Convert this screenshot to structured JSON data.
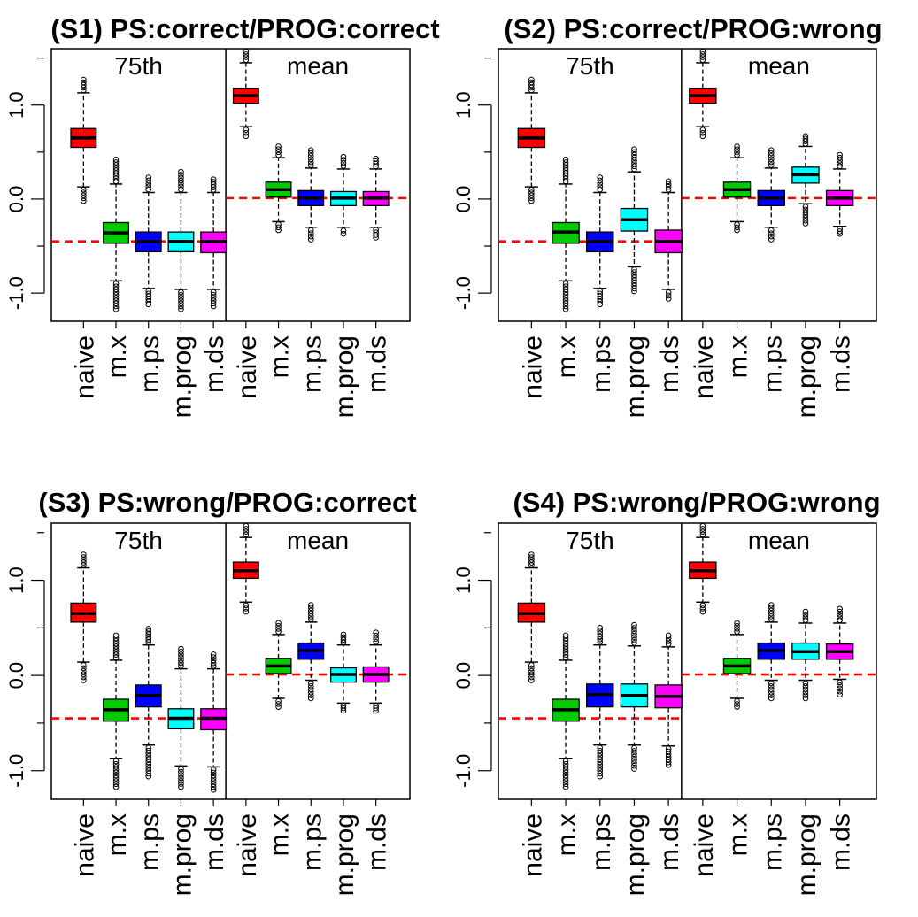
{
  "figure": {
    "colors": {
      "naive": "#ff0000",
      "m.x": "#00cc00",
      "m.ps": "#0000ff",
      "m.prog": "#00ffff",
      "m.ds": "#ff00ff",
      "reference_line": "#ff0000"
    }
  },
  "chart_data": [
    {
      "type": "boxplot",
      "title": "(S1) PS:correct/PROG:correct",
      "panel_labels": [
        "75th",
        "mean"
      ],
      "categories": [
        "naive",
        "m.x",
        "m.ps",
        "m.prog",
        "m.ds"
      ],
      "yticks": [
        "-1.0",
        "0.0",
        "1.0"
      ],
      "ylim": [
        -1.3,
        1.6
      ],
      "reference_lines": [
        -0.45,
        0.01
      ],
      "groups": [
        {
          "label": "75th",
          "boxes": [
            {
              "name": "naive",
              "whislo": 0.13,
              "q1": 0.55,
              "med": 0.65,
              "q3": 0.75,
              "whishi": 1.13,
              "min": -0.02,
              "max": 1.27
            },
            {
              "name": "m.x",
              "whislo": -0.87,
              "q1": -0.47,
              "med": -0.36,
              "q3": -0.25,
              "whishi": 0.16,
              "min": -1.17,
              "max": 0.42
            },
            {
              "name": "m.ps",
              "whislo": -0.95,
              "q1": -0.56,
              "med": -0.45,
              "q3": -0.35,
              "whishi": 0.07,
              "min": -1.12,
              "max": 0.23
            },
            {
              "name": "m.prog",
              "whislo": -0.96,
              "q1": -0.56,
              "med": -0.45,
              "q3": -0.35,
              "whishi": 0.07,
              "min": -1.17,
              "max": 0.29
            },
            {
              "name": "m.ds",
              "whislo": -0.96,
              "q1": -0.57,
              "med": -0.45,
              "q3": -0.35,
              "whishi": 0.07,
              "min": -1.14,
              "max": 0.21
            }
          ]
        },
        {
          "label": "mean",
          "boxes": [
            {
              "name": "naive",
              "whislo": 0.77,
              "q1": 1.02,
              "med": 1.1,
              "q3": 1.18,
              "whishi": 1.45,
              "min": 0.67,
              "max": 1.57
            },
            {
              "name": "m.x",
              "whislo": -0.24,
              "q1": 0.02,
              "med": 0.1,
              "q3": 0.18,
              "whishi": 0.44,
              "min": -0.33,
              "max": 0.56
            },
            {
              "name": "m.ps",
              "whislo": -0.3,
              "q1": -0.07,
              "med": 0.01,
              "q3": 0.09,
              "whishi": 0.33,
              "min": -0.43,
              "max": 0.52
            },
            {
              "name": "m.prog",
              "whislo": -0.3,
              "q1": -0.07,
              "med": 0.01,
              "q3": 0.08,
              "whishi": 0.32,
              "min": -0.37,
              "max": 0.45
            },
            {
              "name": "m.ds",
              "whislo": -0.3,
              "q1": -0.07,
              "med": 0.01,
              "q3": 0.08,
              "whishi": 0.32,
              "min": -0.41,
              "max": 0.43
            }
          ]
        }
      ]
    },
    {
      "type": "boxplot",
      "title": "(S2) PS:correct/PROG:wrong",
      "panel_labels": [
        "75th",
        "mean"
      ],
      "categories": [
        "naive",
        "m.x",
        "m.ps",
        "m.prog",
        "m.ds"
      ],
      "yticks": [
        "-1.0",
        "0.0",
        "1.0"
      ],
      "ylim": [
        -1.3,
        1.6
      ],
      "reference_lines": [
        -0.45,
        0.01
      ],
      "groups": [
        {
          "label": "75th",
          "boxes": [
            {
              "name": "naive",
              "whislo": 0.13,
              "q1": 0.55,
              "med": 0.65,
              "q3": 0.75,
              "whishi": 1.13,
              "min": -0.02,
              "max": 1.27
            },
            {
              "name": "m.x",
              "whislo": -0.87,
              "q1": -0.47,
              "med": -0.35,
              "q3": -0.25,
              "whishi": 0.16,
              "min": -1.17,
              "max": 0.42
            },
            {
              "name": "m.ps",
              "whislo": -0.95,
              "q1": -0.56,
              "med": -0.45,
              "q3": -0.35,
              "whishi": 0.07,
              "min": -1.12,
              "max": 0.23
            },
            {
              "name": "m.prog",
              "whislo": -0.72,
              "q1": -0.34,
              "med": -0.22,
              "q3": -0.1,
              "whishi": 0.29,
              "min": -0.98,
              "max": 0.53
            },
            {
              "name": "m.ds",
              "whislo": -0.96,
              "q1": -0.57,
              "med": -0.45,
              "q3": -0.33,
              "whishi": 0.07,
              "min": -1.06,
              "max": 0.19
            }
          ]
        },
        {
          "label": "mean",
          "boxes": [
            {
              "name": "naive",
              "whislo": 0.77,
              "q1": 1.02,
              "med": 1.1,
              "q3": 1.18,
              "whishi": 1.45,
              "min": 0.67,
              "max": 1.57
            },
            {
              "name": "m.x",
              "whislo": -0.24,
              "q1": 0.02,
              "med": 0.1,
              "q3": 0.18,
              "whishi": 0.44,
              "min": -0.33,
              "max": 0.56
            },
            {
              "name": "m.ps",
              "whislo": -0.3,
              "q1": -0.07,
              "med": 0.01,
              "q3": 0.09,
              "whishi": 0.33,
              "min": -0.43,
              "max": 0.52
            },
            {
              "name": "m.prog",
              "whislo": -0.05,
              "q1": 0.17,
              "med": 0.26,
              "q3": 0.34,
              "whishi": 0.56,
              "min": -0.26,
              "max": 0.67
            },
            {
              "name": "m.ds",
              "whislo": -0.29,
              "q1": -0.07,
              "med": 0.01,
              "q3": 0.09,
              "whishi": 0.32,
              "min": -0.37,
              "max": 0.47
            }
          ]
        }
      ]
    },
    {
      "type": "boxplot",
      "title": "(S3) PS:wrong/PROG:correct",
      "panel_labels": [
        "75th",
        "mean"
      ],
      "categories": [
        "naive",
        "m.x",
        "m.ps",
        "m.prog",
        "m.ds"
      ],
      "yticks": [
        "-1.0",
        "0.0",
        "1.0"
      ],
      "ylim": [
        -1.3,
        1.6
      ],
      "reference_lines": [
        -0.45,
        0.01
      ],
      "groups": [
        {
          "label": "75th",
          "boxes": [
            {
              "name": "naive",
              "whislo": 0.14,
              "q1": 0.56,
              "med": 0.65,
              "q3": 0.76,
              "whishi": 1.13,
              "min": -0.05,
              "max": 1.27
            },
            {
              "name": "m.x",
              "whislo": -0.87,
              "q1": -0.48,
              "med": -0.36,
              "q3": -0.25,
              "whishi": 0.16,
              "min": -1.17,
              "max": 0.42
            },
            {
              "name": "m.ps",
              "whislo": -0.73,
              "q1": -0.33,
              "med": -0.21,
              "q3": -0.1,
              "whishi": 0.32,
              "min": -1.06,
              "max": 0.49
            },
            {
              "name": "m.prog",
              "whislo": -0.95,
              "q1": -0.56,
              "med": -0.45,
              "q3": -0.35,
              "whishi": 0.07,
              "min": -1.17,
              "max": 0.28
            },
            {
              "name": "m.ds",
              "whislo": -0.96,
              "q1": -0.57,
              "med": -0.45,
              "q3": -0.35,
              "whishi": 0.07,
              "min": -1.2,
              "max": 0.22
            }
          ]
        },
        {
          "label": "mean",
          "boxes": [
            {
              "name": "naive",
              "whislo": 0.77,
              "q1": 1.02,
              "med": 1.1,
              "q3": 1.19,
              "whishi": 1.45,
              "min": 0.67,
              "max": 1.57
            },
            {
              "name": "m.x",
              "whislo": -0.24,
              "q1": 0.02,
              "med": 0.1,
              "q3": 0.18,
              "whishi": 0.43,
              "min": -0.33,
              "max": 0.55
            },
            {
              "name": "m.ps",
              "whislo": -0.05,
              "q1": 0.17,
              "med": 0.26,
              "q3": 0.34,
              "whishi": 0.56,
              "min": -0.24,
              "max": 0.74
            },
            {
              "name": "m.prog",
              "whislo": -0.29,
              "q1": -0.07,
              "med": 0.01,
              "q3": 0.08,
              "whishi": 0.32,
              "min": -0.37,
              "max": 0.43
            },
            {
              "name": "m.ds",
              "whislo": -0.29,
              "q1": -0.07,
              "med": 0.01,
              "q3": 0.09,
              "whishi": 0.32,
              "min": -0.37,
              "max": 0.45
            }
          ]
        }
      ]
    },
    {
      "type": "boxplot",
      "title": "(S4) PS:wrong/PROG:wrong",
      "panel_labels": [
        "75th",
        "mean"
      ],
      "categories": [
        "naive",
        "m.x",
        "m.ps",
        "m.prog",
        "m.ds"
      ],
      "yticks": [
        "-1.0",
        "0.0",
        "1.0"
      ],
      "ylim": [
        -1.3,
        1.6
      ],
      "reference_lines": [
        -0.45,
        0.01
      ],
      "groups": [
        {
          "label": "75th",
          "boxes": [
            {
              "name": "naive",
              "whislo": 0.14,
              "q1": 0.56,
              "med": 0.65,
              "q3": 0.76,
              "whishi": 1.13,
              "min": -0.05,
              "max": 1.27
            },
            {
              "name": "m.x",
              "whislo": -0.87,
              "q1": -0.48,
              "med": -0.36,
              "q3": -0.25,
              "whishi": 0.16,
              "min": -1.17,
              "max": 0.42
            },
            {
              "name": "m.ps",
              "whislo": -0.73,
              "q1": -0.33,
              "med": -0.2,
              "q3": -0.09,
              "whishi": 0.32,
              "min": -1.06,
              "max": 0.5
            },
            {
              "name": "m.prog",
              "whislo": -0.73,
              "q1": -0.33,
              "med": -0.21,
              "q3": -0.09,
              "whishi": 0.31,
              "min": -0.98,
              "max": 0.53
            },
            {
              "name": "m.ds",
              "whislo": -0.74,
              "q1": -0.34,
              "med": -0.22,
              "q3": -0.1,
              "whishi": 0.3,
              "min": -0.94,
              "max": 0.42
            }
          ]
        },
        {
          "label": "mean",
          "boxes": [
            {
              "name": "naive",
              "whislo": 0.77,
              "q1": 1.02,
              "med": 1.1,
              "q3": 1.19,
              "whishi": 1.45,
              "min": 0.67,
              "max": 1.57
            },
            {
              "name": "m.x",
              "whislo": -0.24,
              "q1": 0.02,
              "med": 0.1,
              "q3": 0.18,
              "whishi": 0.43,
              "min": -0.33,
              "max": 0.55
            },
            {
              "name": "m.ps",
              "whislo": -0.05,
              "q1": 0.17,
              "med": 0.26,
              "q3": 0.34,
              "whishi": 0.56,
              "min": -0.24,
              "max": 0.74
            },
            {
              "name": "m.prog",
              "whislo": -0.05,
              "q1": 0.17,
              "med": 0.25,
              "q3": 0.34,
              "whishi": 0.55,
              "min": -0.24,
              "max": 0.67
            },
            {
              "name": "m.ds",
              "whislo": -0.04,
              "q1": 0.17,
              "med": 0.25,
              "q3": 0.33,
              "whishi": 0.55,
              "min": -0.2,
              "max": 0.7
            }
          ]
        }
      ]
    }
  ]
}
